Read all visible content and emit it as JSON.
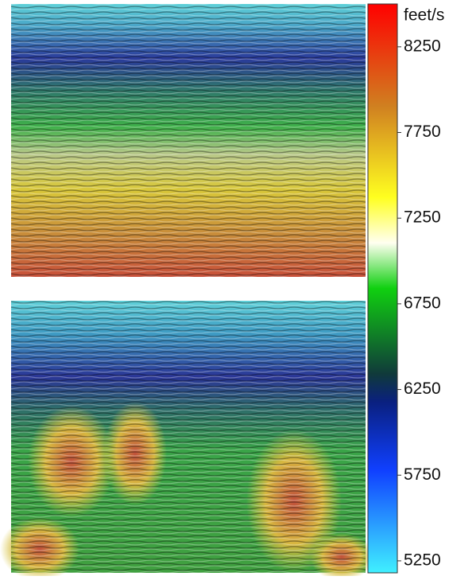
{
  "colorbar": {
    "label": "feet/s",
    "lim": [
      5180,
      8500
    ],
    "ticks": [
      5250,
      5750,
      6250,
      6750,
      7250,
      7750,
      8250
    ]
  }
}
